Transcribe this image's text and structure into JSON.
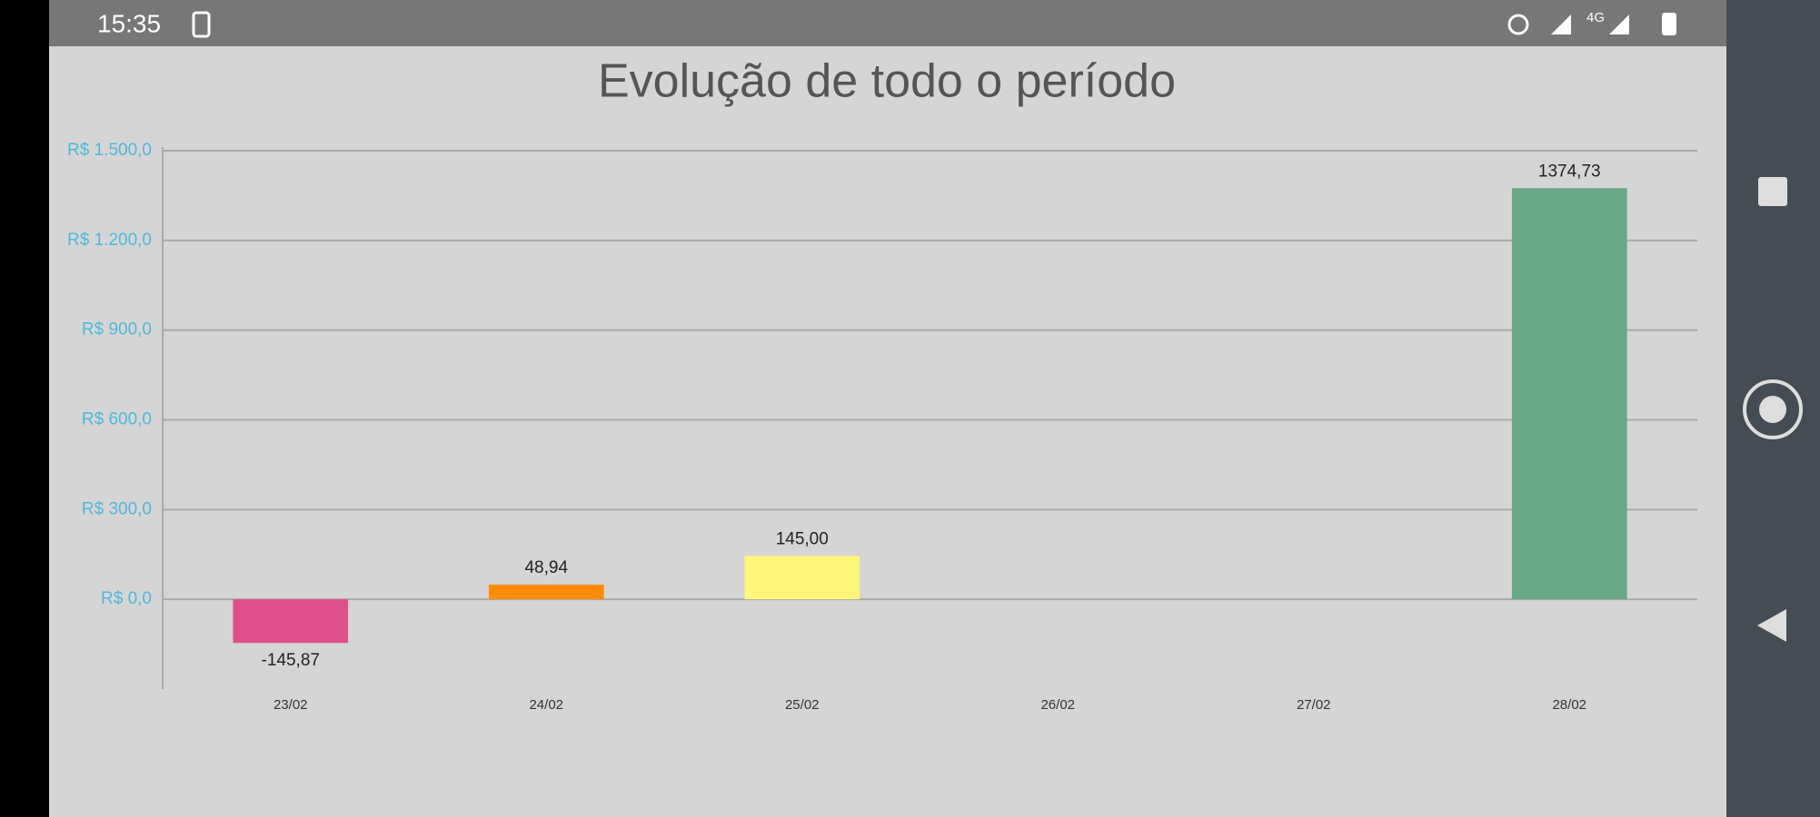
{
  "status_bar": {
    "time": "15:35",
    "network": "4G"
  },
  "chart_data": {
    "type": "bar",
    "title": "Evolução de todo o período",
    "categories": [
      "23/02",
      "24/02",
      "25/02",
      "26/02",
      "27/02",
      "28/02"
    ],
    "values": [
      -145.87,
      48.94,
      145.0,
      null,
      null,
      1374.73
    ],
    "value_labels": [
      "-145,87",
      "48,94",
      "145,00",
      null,
      null,
      "1374,73"
    ],
    "colors": [
      "#e0508a",
      "#ff8c00",
      "#fff57a",
      null,
      null,
      "#68a886"
    ],
    "ylim": [
      -300,
      1500
    ],
    "yticks": [
      {
        "value": 0,
        "label": "R$ 0,0"
      },
      {
        "value": 300,
        "label": "R$ 300,0"
      },
      {
        "value": 600,
        "label": "R$ 600,0"
      },
      {
        "value": 900,
        "label": "R$ 900,0"
      },
      {
        "value": 1200,
        "label": "R$ 1.200,0"
      },
      {
        "value": 1500,
        "label": "R$ 1.500,0"
      }
    ],
    "grid": true
  }
}
